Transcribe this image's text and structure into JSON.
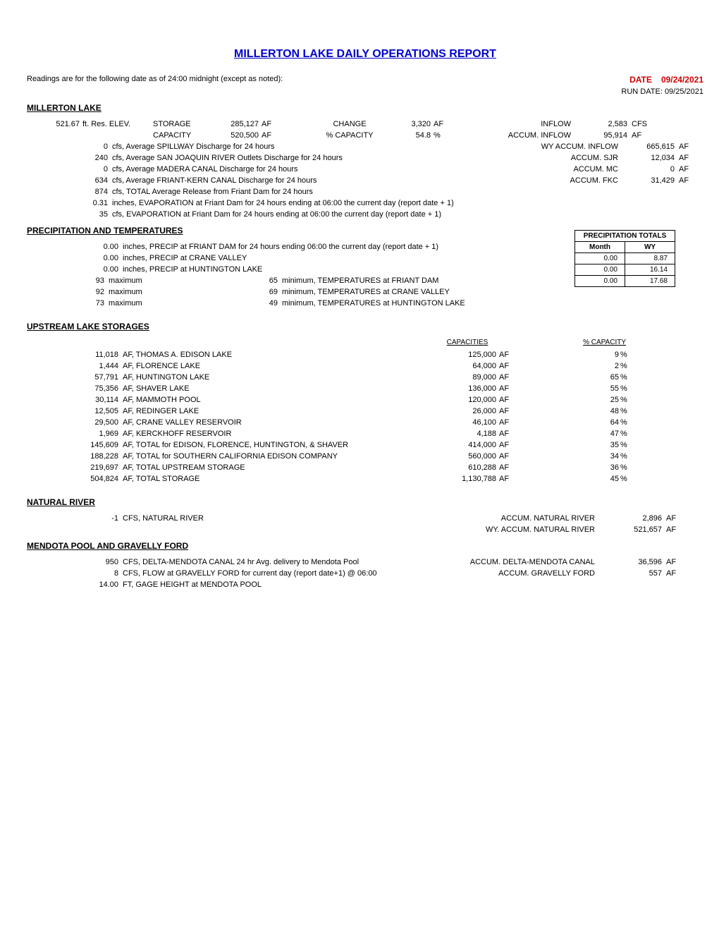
{
  "title": "MILLERTON LAKE DAILY OPERATIONS REPORT",
  "readings_note": "Readings are for the following date as of 24:00 midnight (except as noted):",
  "date_label": "DATE",
  "date_value": "09/24/2021",
  "run_date_label": "RUN DATE:",
  "run_date_value": "09/25/2021",
  "millerton": {
    "header": "MILLERTON LAKE",
    "elev_val": "521.67",
    "elev_lbl": "ft. Res. ELEV.",
    "storage_lbl": "STORAGE",
    "storage_val": "285,127",
    "storage_unit": "AF",
    "change_lbl": "CHANGE",
    "change_val": "3,320",
    "change_unit": "AF",
    "inflow_lbl": "INFLOW",
    "inflow_val": "2,583",
    "inflow_unit": "CFS",
    "capacity_lbl": "CAPACITY",
    "capacity_val": "520,500",
    "capacity_unit": "AF",
    "pct_cap_lbl": "% CAPACITY",
    "pct_cap_val": "54.8",
    "pct_cap_unit": "%",
    "accum_inflow_lbl": "ACCUM. INFLOW",
    "accum_inflow_val": "95,914",
    "accum_inflow_unit": "AF",
    "wy_accum_lbl": "WY ACCUM. INFLOW",
    "wy_accum_val": "665,615",
    "wy_accum_unit": "AF",
    "spillway_val": "0",
    "spillway_desc": "cfs, Average SPILLWAY Discharge for 24 hours",
    "sjr_val": "240",
    "sjr_desc": "cfs, Average SAN JOAQUIN RIVER Outlets Discharge for 24 hours",
    "accum_sjr_lbl": "ACCUM. SJR",
    "accum_sjr_val": "12,034",
    "accum_sjr_unit": "AF",
    "madera_val": "0",
    "madera_desc": "cfs, Average MADERA CANAL Discharge for 24 hours",
    "accum_mc_lbl": "ACCUM. MC",
    "accum_mc_val": "0",
    "accum_mc_unit": "AF",
    "fkc_val": "634",
    "fkc_desc": "cfs, Average FRIANT-KERN CANAL Discharge for 24 hours",
    "accum_fkc_lbl": "ACCUM. FKC",
    "accum_fkc_val": "31,429",
    "accum_fkc_unit": "AF",
    "total_val": "874",
    "total_desc": "cfs, TOTAL Average Release from Friant Dam for 24 hours",
    "evap_in_val": "0.31",
    "evap_in_desc": "inches, EVAPORATION at Friant Dam for 24 hours ending at 06:00 the current day (report date + 1)",
    "evap_cfs_val": "35",
    "evap_cfs_desc": "cfs, EVAPORATION at Friant Dam for 24 hours ending at 06:00 the current day (report date + 1)"
  },
  "precip": {
    "header": "PRECIPITATION AND TEMPERATURES",
    "table_title": "PRECIPITATION TOTALS",
    "month_hdr": "Month",
    "wy_hdr": "WY",
    "friant_val": "0.00",
    "friant_desc": "inches, PRECIP at FRIANT DAM for 24 hours ending 06:00 the current day (report date + 1)",
    "friant_month": "0.00",
    "friant_wy": "8.87",
    "crane_val": "0.00",
    "crane_desc": "inches, PRECIP at CRANE VALLEY",
    "crane_month": "0.00",
    "crane_wy": "16.14",
    "hunt_val": "0.00",
    "hunt_desc": "inches, PRECIP at HUNTINGTON LAKE",
    "hunt_month": "0.00",
    "hunt_wy": "17.68",
    "friant_max": "93",
    "friant_min": "65",
    "friant_temp_lbl": "minimum, TEMPERATURES at FRIANT DAM",
    "crane_max": "92",
    "crane_min": "69",
    "crane_temp_lbl": "minimum, TEMPERATURES at CRANE VALLEY",
    "hunt_max": "73",
    "hunt_min": "49",
    "hunt_temp_lbl": "minimum, TEMPERATURES at HUNTINGTON LAKE",
    "max_lbl": "maximum"
  },
  "upstream": {
    "header": "UPSTREAM LAKE STORAGES",
    "cap_hdr": "CAPACITIES",
    "pct_hdr": "% CAPACITY",
    "rows": [
      {
        "val": "11,018",
        "name": "AF, THOMAS A. EDISON LAKE",
        "cap": "125,000",
        "unit": "AF",
        "pct": "9",
        "pu": "%"
      },
      {
        "val": "1,444",
        "name": "AF, FLORENCE LAKE",
        "cap": "64,000",
        "unit": "AF",
        "pct": "2",
        "pu": "%"
      },
      {
        "val": "57,791",
        "name": "AF, HUNTINGTON LAKE",
        "cap": "89,000",
        "unit": "AF",
        "pct": "65",
        "pu": "%"
      },
      {
        "val": "75,356",
        "name": "AF, SHAVER LAKE",
        "cap": "136,000",
        "unit": "AF",
        "pct": "55",
        "pu": "%"
      },
      {
        "val": "30,114",
        "name": "AF, MAMMOTH POOL",
        "cap": "120,000",
        "unit": "AF",
        "pct": "25",
        "pu": "%"
      },
      {
        "val": "12,505",
        "name": "AF, REDINGER LAKE",
        "cap": "26,000",
        "unit": "AF",
        "pct": "48",
        "pu": "%"
      },
      {
        "val": "29,500",
        "name": "AF, CRANE VALLEY RESERVOIR",
        "cap": "46,100",
        "unit": "AF",
        "pct": "64",
        "pu": "%"
      },
      {
        "val": "1,969",
        "name": "AF, KERCKHOFF RESERVOIR",
        "cap": "4,188",
        "unit": "AF",
        "pct": "47",
        "pu": "%"
      },
      {
        "val": "145,609",
        "name": "AF, TOTAL for EDISON, FLORENCE, HUNTINGTON, & SHAVER",
        "cap": "414,000",
        "unit": "AF",
        "pct": "35",
        "pu": "%"
      },
      {
        "val": "188,228",
        "name": "AF, TOTAL for SOUTHERN CALIFORNIA EDISON COMPANY",
        "cap": "560,000",
        "unit": "AF",
        "pct": "34",
        "pu": "%"
      },
      {
        "val": "219,697",
        "name": "AF, TOTAL UPSTREAM STORAGE",
        "cap": "610,288",
        "unit": "AF",
        "pct": "36",
        "pu": "%"
      },
      {
        "val": "504,824",
        "name": "AF, TOTAL STORAGE",
        "cap": "1,130,788",
        "unit": "AF",
        "pct": "45",
        "pu": "%"
      }
    ]
  },
  "natural_river": {
    "header": "NATURAL RIVER",
    "val": "-1",
    "desc": "CFS, NATURAL RIVER",
    "accum_lbl": "ACCUM. NATURAL RIVER",
    "accum_val": "2,896",
    "accum_unit": "AF",
    "wy_lbl": "WY. ACCUM. NATURAL RIVER",
    "wy_val": "521,657",
    "wy_unit": "AF"
  },
  "mendota": {
    "header": "MENDOTA POOL AND GRAVELLY FORD",
    "dmc_val": "950",
    "dmc_desc": "CFS, DELTA-MENDOTA CANAL 24 hr Avg. delivery to Mendota Pool",
    "dmc_accum_lbl": "ACCUM. DELTA-MENDOTA CANAL",
    "dmc_accum_val": "36,596",
    "dmc_accum_unit": "AF",
    "gf_val": "8",
    "gf_desc": "CFS, FLOW at GRAVELLY FORD for current day (report date+1) @ 06:00",
    "gf_accum_lbl": "ACCUM. GRAVELLY FORD",
    "gf_accum_val": "557",
    "gf_accum_unit": "AF",
    "gage_val": "14.00",
    "gage_desc": "FT, GAGE HEIGHT at MENDOTA POOL"
  }
}
